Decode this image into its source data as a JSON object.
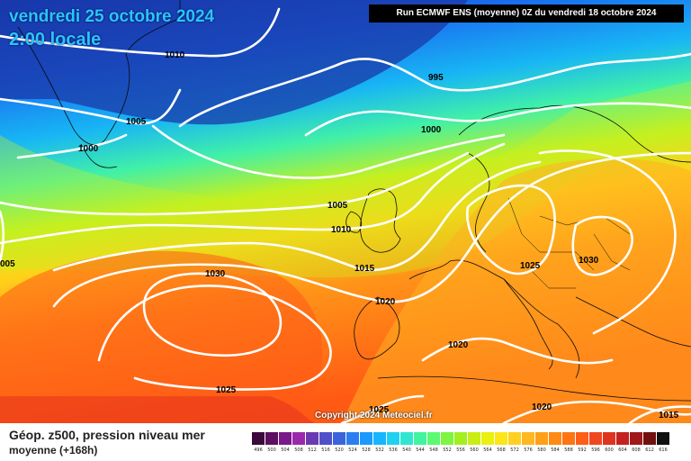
{
  "header": {
    "date": "vendredi 25 octobre 2024",
    "time": "2:00 locale",
    "run_info": "Run ECMWF ENS (moyenne) 0Z du vendredi 18 octobre 2024"
  },
  "copyright": "Copyright 2024 Meteociel.fr",
  "footer": {
    "title": "Géop. z500, pression niveau mer",
    "subtitle": "moyenne   (+168h)"
  },
  "isobar_labels": [
    {
      "id": "a",
      "text": "1010"
    },
    {
      "id": "b",
      "text": "1005"
    },
    {
      "id": "c",
      "text": "1000"
    },
    {
      "id": "d",
      "text": "995"
    },
    {
      "id": "e",
      "text": "1000"
    },
    {
      "id": "f",
      "text": "1005"
    },
    {
      "id": "g",
      "text": "1010"
    },
    {
      "id": "h",
      "text": "1015"
    },
    {
      "id": "i",
      "text": "1020"
    },
    {
      "id": "j",
      "text": "1030"
    },
    {
      "id": "k",
      "text": "1025"
    },
    {
      "id": "l",
      "text": "1025"
    },
    {
      "id": "m",
      "text": "1030"
    },
    {
      "id": "n",
      "text": "1020"
    },
    {
      "id": "o",
      "text": "1025"
    },
    {
      "id": "p",
      "text": "1020"
    },
    {
      "id": "q",
      "text": "1015"
    },
    {
      "id": "r",
      "text": "005"
    }
  ],
  "legend": {
    "labels": [
      "496",
      "500",
      "504",
      "508",
      "512",
      "516",
      "520",
      "524",
      "528",
      "532",
      "536",
      "540",
      "544",
      "548",
      "552",
      "556",
      "560",
      "564",
      "568",
      "572",
      "576",
      "580",
      "584",
      "588",
      "592",
      "596",
      "600",
      "604",
      "608",
      "612",
      "616"
    ],
    "colors": [
      "#3a0a3a",
      "#5e1060",
      "#7a1a8a",
      "#9a2aaa",
      "#6a3ab0",
      "#5050c8",
      "#3a64dc",
      "#2a7ef0",
      "#1a9aff",
      "#16b6ff",
      "#20d0f0",
      "#30e6d0",
      "#40f4a0",
      "#5cfa70",
      "#7cf640",
      "#a2f020",
      "#c8ee14",
      "#eaf010",
      "#fce618",
      "#ffd020",
      "#ffb820",
      "#ffa018",
      "#ff8a14",
      "#ff7414",
      "#ff5e18",
      "#f0481e",
      "#de3420",
      "#c42220",
      "#a01818",
      "#701010",
      "#101010"
    ]
  }
}
